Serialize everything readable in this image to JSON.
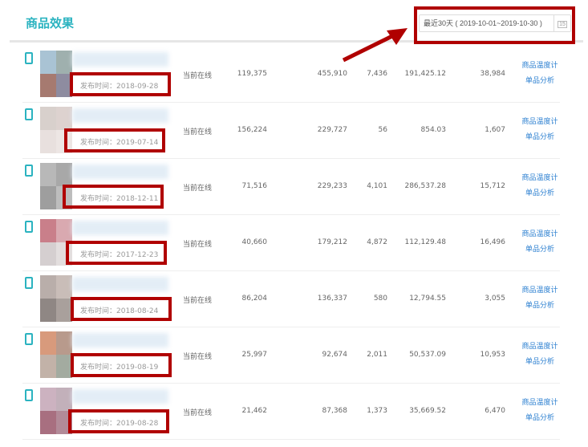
{
  "header": {
    "title": "商品效果",
    "date_range": "最近30天 ( 2019-10-01~2019-10-30 )",
    "calendar_icon": "calendar-icon",
    "calendar_day": "15"
  },
  "row_labels": {
    "status": "当前在线",
    "link_temp": "商品温度计",
    "link_analysis": "单品分析"
  },
  "colors": {
    "accent": "#2bb3c0",
    "link": "#2b7fd0",
    "annotation": "#b00000"
  },
  "rows": [
    {
      "date": "发布时间：2018-09-28",
      "c1": "119,375",
      "c2": "455,910",
      "c3": "7,436",
      "c4": "191,425.12",
      "c5": "38,984",
      "thumb": [
        "#a9c3d4",
        "#9fb0ae",
        "#a67a70",
        "#8e8ca0"
      ]
    },
    {
      "date": "发布时间：2019-07-14",
      "c1": "156,224",
      "c2": "229,727",
      "c3": "56",
      "c4": "854.03",
      "c5": "1,607",
      "thumb": [
        "#d8d0cc",
        "#ddd2cf",
        "#e8e0de",
        "#ede6e4"
      ]
    },
    {
      "date": "发布时间：2018-12-11",
      "c1": "71,516",
      "c2": "229,233",
      "c3": "4,101",
      "c4": "286,537.28",
      "c5": "15,712",
      "thumb": [
        "#b8b8b8",
        "#a8a8a8",
        "#9e9e9e",
        "#bdbdbd"
      ]
    },
    {
      "date": "发布时间：2017-12-23",
      "c1": "40,660",
      "c2": "179,212",
      "c3": "4,872",
      "c4": "112,129.48",
      "c5": "16,496",
      "thumb": [
        "#c97f8a",
        "#d9a9b0",
        "#d5cfd0",
        "#e3dede"
      ]
    },
    {
      "date": "发布时间：2018-08-24",
      "c1": "86,204",
      "c2": "136,337",
      "c3": "580",
      "c4": "12,794.55",
      "c5": "3,055",
      "thumb": [
        "#b9aeaa",
        "#c9bdb8",
        "#8f8784",
        "#a9a09c"
      ]
    },
    {
      "date": "发布时间：2019-08-19",
      "c1": "25,997",
      "c2": "92,674",
      "c3": "2,011",
      "c4": "50,537.09",
      "c5": "10,953",
      "thumb": [
        "#d89a7c",
        "#b89a8c",
        "#c2b2a8",
        "#a3aba0"
      ]
    },
    {
      "date": "发布时间：2019-08-28",
      "c1": "21,462",
      "c2": "87,368",
      "c3": "1,373",
      "c4": "35,669.52",
      "c5": "6,470",
      "thumb": [
        "#ccb2c0",
        "#c2b0ba",
        "#a86f80",
        "#b28a98"
      ]
    }
  ]
}
